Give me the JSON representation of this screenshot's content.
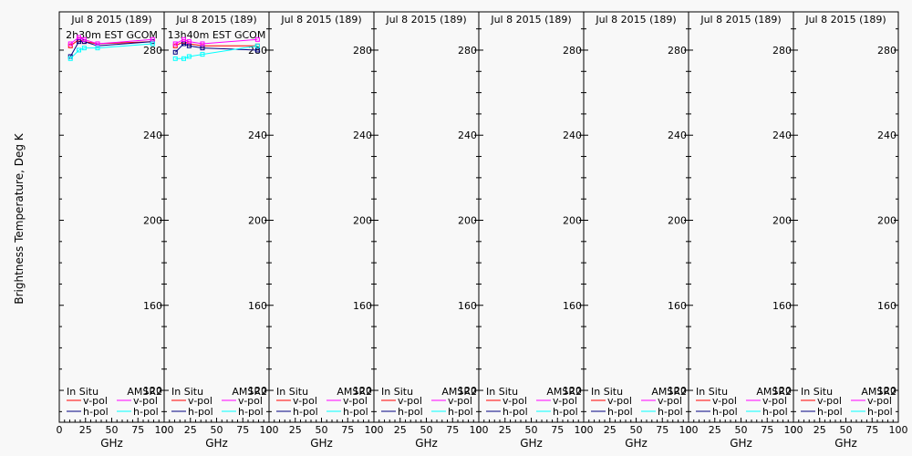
{
  "ylabel": "Brightness Temperature, Deg K",
  "xlabel": "GHz",
  "colors": {
    "insitu_v": "#ff0000",
    "insitu_h": "#000080",
    "amsr2_v": "#ff00ff",
    "amsr2_h": "#00ffff"
  },
  "chart_data": [
    {
      "type": "line",
      "title": "Jul 8 2015 (189)",
      "subtitle": "2h30m EST GCOM",
      "xlim": [
        0,
        100
      ],
      "ylim": [
        105,
        298
      ],
      "xticks": [
        0,
        25,
        50,
        75,
        100
      ],
      "yticks": [
        120,
        160,
        200,
        240,
        280
      ],
      "legend": {
        "col1": "In Situ",
        "col2": "AMSR2",
        "v": "v-pol",
        "h": "h-pol"
      },
      "series": [
        {
          "name": "In Situ v-pol",
          "key": "insitu_v",
          "x": [
            10.65,
            18.7,
            23.8,
            36.5,
            89
          ],
          "y": [
            282,
            285,
            284,
            283,
            284
          ]
        },
        {
          "name": "In Situ h-pol",
          "key": "insitu_h",
          "x": [
            10.65,
            18.7,
            23.8,
            36.5,
            89
          ],
          "y": [
            277,
            284,
            284,
            282,
            284
          ]
        },
        {
          "name": "AMSR2 v-pol",
          "key": "amsr2_v",
          "x": [
            10.65,
            18.7,
            23.8,
            36.5,
            89
          ],
          "y": [
            283,
            286,
            285,
            283,
            285
          ]
        },
        {
          "name": "AMSR2 h-pol",
          "key": "amsr2_h",
          "x": [
            10.65,
            18.7,
            23.8,
            36.5,
            89
          ],
          "y": [
            276,
            280,
            281,
            281,
            283
          ]
        }
      ]
    },
    {
      "type": "line",
      "title": "Jul 8 2015 (189)",
      "subtitle": "13h40m EST GCOM",
      "xlim": [
        0,
        100
      ],
      "ylim": [
        105,
        298
      ],
      "xticks": [
        0,
        25,
        50,
        75,
        100
      ],
      "yticks": [
        120,
        160,
        200,
        240,
        280
      ],
      "legend": {
        "col1": "In Situ",
        "col2": "AMSR2",
        "v": "v-pol",
        "h": "h-pol"
      },
      "series": [
        {
          "name": "In Situ v-pol",
          "key": "insitu_v",
          "x": [
            10.65,
            18.7,
            23.8,
            36.5,
            89
          ],
          "y": [
            282,
            284,
            283,
            282,
            282
          ]
        },
        {
          "name": "In Situ h-pol",
          "key": "insitu_h",
          "x": [
            10.65,
            18.7,
            23.8,
            36.5,
            89
          ],
          "y": [
            279,
            283,
            282,
            281,
            280
          ]
        },
        {
          "name": "AMSR2 v-pol",
          "key": "amsr2_v",
          "x": [
            10.65,
            18.7,
            23.8,
            36.5,
            89
          ],
          "y": [
            283,
            285,
            284,
            283,
            285
          ]
        },
        {
          "name": "AMSR2 h-pol",
          "key": "amsr2_h",
          "x": [
            10.65,
            18.7,
            23.8,
            36.5,
            89
          ],
          "y": [
            276,
            276,
            277,
            278,
            282
          ]
        }
      ]
    },
    {
      "type": "line",
      "title": "Jul 8 2015 (189)",
      "subtitle": "",
      "xlim": [
        0,
        100
      ],
      "ylim": [
        105,
        298
      ],
      "xticks": [
        0,
        25,
        50,
        75,
        100
      ],
      "yticks": [
        120,
        160,
        200,
        240,
        280
      ],
      "legend": {
        "col1": "In Situ",
        "col2": "AMSR2",
        "v": "v-pol",
        "h": "h-pol"
      },
      "series": []
    },
    {
      "type": "line",
      "title": "Jul 8 2015 (189)",
      "subtitle": "",
      "xlim": [
        0,
        100
      ],
      "ylim": [
        105,
        298
      ],
      "xticks": [
        0,
        25,
        50,
        75,
        100
      ],
      "yticks": [
        120,
        160,
        200,
        240,
        280
      ],
      "legend": {
        "col1": "In Situ",
        "col2": "AMSR2",
        "v": "v-pol",
        "h": "h-pol"
      },
      "series": []
    },
    {
      "type": "line",
      "title": "Jul 8 2015 (189)",
      "subtitle": "",
      "xlim": [
        0,
        100
      ],
      "ylim": [
        105,
        298
      ],
      "xticks": [
        0,
        25,
        50,
        75,
        100
      ],
      "yticks": [
        120,
        160,
        200,
        240,
        280
      ],
      "legend": {
        "col1": "In Situ",
        "col2": "AMSR2",
        "v": "v-pol",
        "h": "h-pol"
      },
      "series": []
    },
    {
      "type": "line",
      "title": "Jul 8 2015 (189)",
      "subtitle": "",
      "xlim": [
        0,
        100
      ],
      "ylim": [
        105,
        298
      ],
      "xticks": [
        0,
        25,
        50,
        75,
        100
      ],
      "yticks": [
        120,
        160,
        200,
        240,
        280
      ],
      "legend": {
        "col1": "In Situ",
        "col2": "AMSR2",
        "v": "v-pol",
        "h": "h-pol"
      },
      "series": []
    },
    {
      "type": "line",
      "title": "Jul 8 2015 (189)",
      "subtitle": "",
      "xlim": [
        0,
        100
      ],
      "ylim": [
        105,
        298
      ],
      "xticks": [
        0,
        25,
        50,
        75,
        100
      ],
      "yticks": [
        120,
        160,
        200,
        240,
        280
      ],
      "legend": {
        "col1": "In Situ",
        "col2": "AMSR2",
        "v": "v-pol",
        "h": "h-pol"
      },
      "series": []
    },
    {
      "type": "line",
      "title": "Jul 8 2015 (189)",
      "subtitle": "",
      "xlim": [
        0,
        100
      ],
      "ylim": [
        105,
        298
      ],
      "xticks": [
        0,
        25,
        50,
        75,
        100
      ],
      "yticks": [
        120,
        160,
        200,
        240,
        280
      ],
      "legend": {
        "col1": "In Situ",
        "col2": "AMSR2",
        "v": "v-pol",
        "h": "h-pol"
      },
      "series": []
    }
  ]
}
